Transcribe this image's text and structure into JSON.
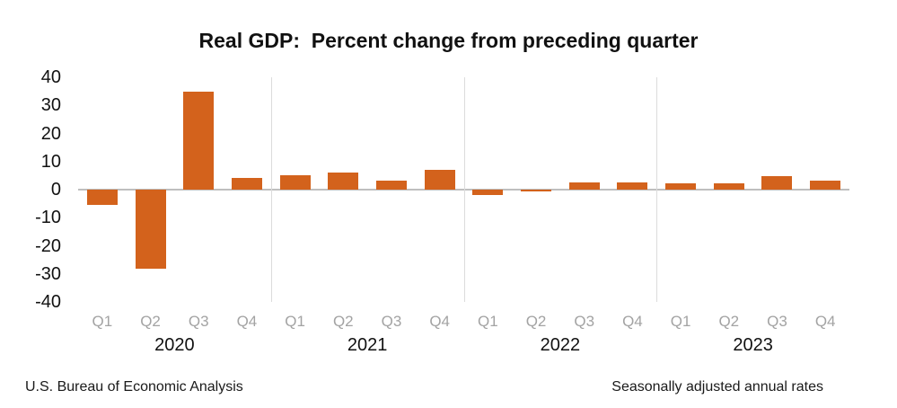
{
  "chart_data": {
    "type": "bar",
    "title": "Real GDP:  Percent change from preceding quarter",
    "ylabel": "",
    "xlabel": "",
    "ylim": [
      -40,
      40
    ],
    "yticks": [
      40,
      30,
      20,
      10,
      0,
      -10,
      -20,
      -30,
      -40
    ],
    "grid": "zero-line only, vertical year separators",
    "legend": "none",
    "categories": [
      "2020 Q1",
      "2020 Q2",
      "2020 Q3",
      "2020 Q4",
      "2021 Q1",
      "2021 Q2",
      "2021 Q3",
      "2021 Q4",
      "2022 Q1",
      "2022 Q2",
      "2022 Q3",
      "2022 Q4",
      "2023 Q1",
      "2023 Q2",
      "2023 Q3",
      "2023 Q4"
    ],
    "values": [
      -5.3,
      -28.0,
      34.8,
      4.2,
      5.2,
      6.2,
      3.3,
      7.0,
      -2.0,
      -0.6,
      2.7,
      2.6,
      2.2,
      2.1,
      4.9,
      3.3
    ],
    "groups": [
      {
        "year": "2020",
        "quarters": [
          "Q1",
          "Q2",
          "Q3",
          "Q4"
        ],
        "values": [
          -5.3,
          -28.0,
          34.8,
          4.2
        ]
      },
      {
        "year": "2021",
        "quarters": [
          "Q1",
          "Q2",
          "Q3",
          "Q4"
        ],
        "values": [
          5.2,
          6.2,
          3.3,
          7.0
        ]
      },
      {
        "year": "2022",
        "quarters": [
          "Q1",
          "Q2",
          "Q3",
          "Q4"
        ],
        "values": [
          -2.0,
          -0.6,
          2.7,
          2.6
        ]
      },
      {
        "year": "2023",
        "quarters": [
          "Q1",
          "Q2",
          "Q3",
          "Q4"
        ],
        "values": [
          2.2,
          2.1,
          4.9,
          3.3
        ]
      }
    ],
    "colors": {
      "bar": "#d3621c",
      "quarter_label": "#a3a3a3",
      "year_label": "#111111",
      "zero_line": "#bfbfbf",
      "separator": "#dcdcdc"
    },
    "footnote_left": "U.S. Bureau of Economic Analysis",
    "footnote_right": "Seasonally adjusted annual rates"
  }
}
